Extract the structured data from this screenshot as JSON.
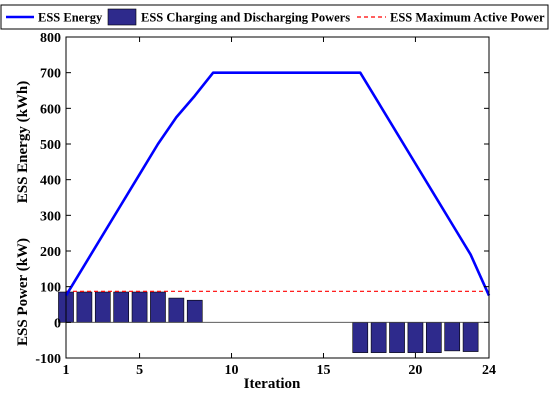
{
  "chart_data": {
    "type": "bar",
    "xlabel": "Iteration",
    "ylabel_energy": "ESS Energy (kWh)",
    "ylabel_power": "ESS Power (kW)",
    "xlim": [
      1,
      24
    ],
    "ylim": [
      -100,
      800
    ],
    "xticks": [
      1,
      5,
      10,
      15,
      20,
      24
    ],
    "yticks": [
      -100,
      0,
      100,
      200,
      300,
      400,
      500,
      600,
      700,
      800
    ],
    "grid": false,
    "legend": {
      "position": "top",
      "entries": [
        {
          "label": "ESS Energy",
          "style": "line",
          "color": "#0000ff"
        },
        {
          "label": "ESS Charging and Discharging Powers",
          "style": "bar",
          "color": "#2e2a8c"
        },
        {
          "label": "ESS Maximum Active Power",
          "style": "dashed",
          "color": "#ff0000"
        }
      ]
    },
    "series": [
      {
        "name": "ESS Energy",
        "type": "line",
        "color": "#0000ff",
        "x": [
          1,
          2,
          3,
          4,
          5,
          6,
          7,
          8,
          9,
          10,
          11,
          12,
          13,
          14,
          15,
          16,
          17,
          18,
          19,
          20,
          21,
          22,
          23,
          24
        ],
        "values": [
          75,
          160,
          245,
          330,
          415,
          500,
          575,
          635,
          700,
          700,
          700,
          700,
          700,
          700,
          700,
          700,
          700,
          615,
          530,
          445,
          360,
          275,
          190,
          75
        ]
      },
      {
        "name": "ESS Charging and Discharging Powers",
        "type": "bar",
        "color": "#2e2a8c",
        "x": [
          1,
          2,
          3,
          4,
          5,
          6,
          7,
          8,
          9,
          10,
          11,
          12,
          13,
          14,
          15,
          16,
          17,
          18,
          19,
          20,
          21,
          22,
          23
        ],
        "values": [
          85,
          85,
          85,
          85,
          85,
          85,
          68,
          62,
          0,
          0,
          0,
          0,
          0,
          0,
          0,
          0,
          -85,
          -85,
          -85,
          -85,
          -85,
          -80,
          -82
        ]
      },
      {
        "name": "ESS Maximum Active Power",
        "type": "hline",
        "color": "#ff0000",
        "value": 87
      }
    ]
  }
}
